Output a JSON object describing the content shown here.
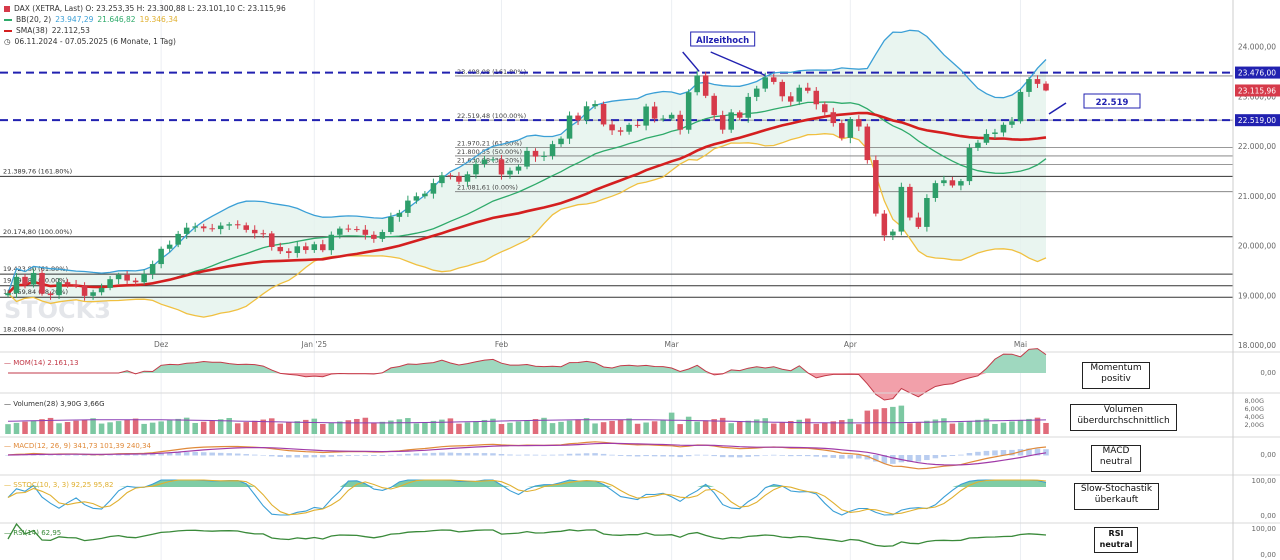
{
  "header": {
    "dax_line": "DAX (XETRA, Last)  O: 23.253,35  H: 23.300,88  L: 23.101,10  C: 23.115,96",
    "bb": {
      "label": "BB(20, 2)",
      "v1": "23.947,29",
      "v2": "21.646,82",
      "v3": "19.346,34"
    },
    "sma": {
      "label": "SMA(38)",
      "value": "22.112,53"
    },
    "range": "06.11.2024 - 07.05.2025  (6 Monate, 1 Tag)"
  },
  "colors": {
    "bb_upper": "#3a9fd6",
    "bb_mid": "#2eaa6a",
    "bb_lower": "#f0c040",
    "sma": "#d41f1f",
    "up": "#2e9e6a",
    "down": "#d63a4a",
    "dash": "#2121b0",
    "price_box": "#d63a4a"
  },
  "watermark": "STOCK3",
  "main_chart": {
    "y_ticks": [
      "24.000,00",
      "23.000,00",
      "22.000,00",
      "21.000,00",
      "20.000,00",
      "19.000,00",
      "18.000,00"
    ],
    "x_ticks": [
      "Dez",
      "Jan '25",
      "Feb",
      "Mar",
      "Apr",
      "Mai"
    ],
    "price_tags": [
      "23.476,00",
      "23.115,96",
      "22.519,00"
    ],
    "fib_labels": [
      "23.408,08 (161.80%)",
      "22.519,48 (100.00%)",
      "21.970,21 (61.80%)",
      "21.800,55 (50.00%)",
      "21.630,88 (38.20%)",
      "21.081,61 (0.00%)",
      "21.389,76 (161.80%)",
      "20.174,80 (100.00%)",
      "19.423,80 (61.80%)",
      "19.191,82 (50.00%)",
      "18.959,84 (38.20%)",
      "18.208,84 (0.00%)"
    ],
    "annotations": {
      "allzeithoch": "Allzeithoch",
      "level": "22.519"
    }
  },
  "chart_data": {
    "type": "line",
    "title": "DAX (XETRA, Last)",
    "ylim": [
      18000,
      24500
    ],
    "x": [
      "2024-11-06",
      "2024-11-07",
      "2024-11-08",
      "2024-11-11",
      "2024-11-12",
      "2024-11-13",
      "2024-11-14",
      "2024-11-15",
      "2024-11-18",
      "2024-11-19",
      "2024-11-20",
      "2024-11-21",
      "2024-11-22",
      "2024-11-25",
      "2024-11-26",
      "2024-11-27",
      "2024-11-28",
      "2024-11-29",
      "2024-12-02",
      "2024-12-03",
      "2024-12-04",
      "2024-12-05",
      "2024-12-06",
      "2024-12-09",
      "2024-12-10",
      "2024-12-11",
      "2024-12-12",
      "2024-12-13",
      "2024-12-16",
      "2024-12-17",
      "2024-12-18",
      "2024-12-19",
      "2024-12-20",
      "2024-12-23",
      "2024-12-27",
      "2024-12-30",
      "2025-01-02",
      "2025-01-03",
      "2025-01-06",
      "2025-01-07",
      "2025-01-08",
      "2025-01-09",
      "2025-01-10",
      "2025-01-13",
      "2025-01-14",
      "2025-01-15",
      "2025-01-16",
      "2025-01-17",
      "2025-01-20",
      "2025-01-21",
      "2025-01-22",
      "2025-01-23",
      "2025-01-24",
      "2025-01-27",
      "2025-01-28",
      "2025-01-29",
      "2025-01-30",
      "2025-01-31",
      "2025-02-03",
      "2025-02-04",
      "2025-02-05",
      "2025-02-06",
      "2025-02-07",
      "2025-02-10",
      "2025-02-11",
      "2025-02-12",
      "2025-02-13",
      "2025-02-14",
      "2025-02-17",
      "2025-02-18",
      "2025-02-19",
      "2025-02-20",
      "2025-02-21",
      "2025-02-24",
      "2025-02-25",
      "2025-02-26",
      "2025-02-27",
      "2025-02-28",
      "2025-03-03",
      "2025-03-04",
      "2025-03-05",
      "2025-03-06",
      "2025-03-07",
      "2025-03-10",
      "2025-03-11",
      "2025-03-12",
      "2025-03-13",
      "2025-03-14",
      "2025-03-17",
      "2025-03-18",
      "2025-03-19",
      "2025-03-20",
      "2025-03-21",
      "2025-03-24",
      "2025-03-25",
      "2025-03-26",
      "2025-03-27",
      "2025-03-28",
      "2025-03-31",
      "2025-04-01",
      "2025-04-02",
      "2025-04-03",
      "2025-04-04",
      "2025-04-07",
      "2025-04-08",
      "2025-04-09",
      "2025-04-10",
      "2025-04-11",
      "2025-04-14",
      "2025-04-15",
      "2025-04-16",
      "2025-04-17",
      "2025-04-22",
      "2025-04-23",
      "2025-04-24",
      "2025-04-25",
      "2025-04-28",
      "2025-04-29",
      "2025-04-30",
      "2025-05-02",
      "2025-05-05",
      "2025-05-06",
      "2025-05-07"
    ],
    "series": [
      {
        "name": "DAX (XETRA, Last)",
        "close": [
          19040,
          19370,
          19215,
          19448,
          19033,
          19003,
          19263,
          19211,
          19189,
          18988,
          19060,
          19147,
          19323,
          19410,
          19295,
          19262,
          19426,
          19627,
          19934,
          20017,
          20233,
          20359,
          20384,
          20346,
          20330,
          20400,
          20427,
          20406,
          20314,
          20246,
          20243,
          19970,
          19885,
          19849,
          19984,
          19909,
          20025,
          19906,
          20216,
          20340,
          20330,
          20317,
          20215,
          20133,
          20271,
          20575,
          20655,
          20903,
          20990,
          21042,
          21254,
          21411,
          21394,
          21282,
          21431,
          21637,
          21727,
          21732,
          21428,
          21505,
          21586,
          21902,
          21787,
          21800,
          22037,
          22148,
          22612,
          22514,
          22799,
          22844,
          22433,
          22315,
          22287,
          22425,
          22410,
          22794,
          22551,
          22551,
          22627,
          22327,
          23081,
          23419,
          23009,
          22621,
          22328,
          22676,
          22568,
          22987,
          23154,
          23380,
          23288,
          22999,
          22892,
          23172,
          23110,
          22839,
          22679,
          22461,
          22163,
          22540,
          22391,
          21717,
          20641,
          20202,
          20280,
          21178,
          20562,
          20374,
          20955,
          21254,
          21311,
          21206,
          21294,
          21962,
          22065,
          22242,
          22272,
          22426,
          22497,
          23087,
          23345,
          23249,
          23116
        ]
      },
      {
        "name": "BB(20, 2)",
        "upper_last": 23947.29,
        "middle_last": 21646.82,
        "lower_last": 19346.34
      },
      {
        "name": "SMA(38)",
        "last": 22112.53
      }
    ],
    "last_ohlc": {
      "open": 23253.35,
      "high": 23300.88,
      "low": 23101.1,
      "close": 23115.96
    },
    "horizontal_levels": [
      23476,
      22519,
      23408.08,
      22519.48,
      21970.21,
      21800.55,
      21630.88,
      21081.61,
      21389.76,
      20174.8,
      19423.8,
      19191.82,
      18959.84,
      18208.84
    ],
    "indicators": {
      "MOM(14)": 2161.13,
      "Volumen(28)": {
        "value": "3,90G",
        "avg": "3,66G"
      },
      "MACD(12, 26, 9)": {
        "macd": 341.73,
        "signal": 101.39,
        "hist": 240.34
      },
      "SSTOC(10, 3, 3)": {
        "k": 92.25,
        "d": 95.82
      },
      "RSI(14)": 62.95
    }
  },
  "panels": {
    "mom": {
      "label": "MOM(14)",
      "value": "2.161,13",
      "ticks": [
        "0,00"
      ],
      "box": [
        "Momentum",
        "positiv"
      ]
    },
    "vol": {
      "label": "Volumen(28)",
      "value": "3,90G",
      "value2": "3,66G",
      "ticks": [
        "8,00G",
        "6,00G",
        "4,00G",
        "2,00G"
      ],
      "box": [
        "Volumen",
        "überdurchschnittlich"
      ]
    },
    "macd": {
      "label": "MACD(12, 26, 9)",
      "value": "341,73",
      "value2": "101,39",
      "value3": "240,34",
      "ticks": [
        "0,00"
      ],
      "box": [
        "MACD",
        "neutral"
      ]
    },
    "sstoc": {
      "label": "SSTOC(10, 3, 3)",
      "value": "92,25",
      "value2": "95,82",
      "ticks": [
        "100,00",
        "0,00"
      ],
      "box": [
        "Slow-Stochastik",
        "überkauft"
      ]
    },
    "rsi": {
      "label": "RSI(14)",
      "value": "62,95",
      "ticks": [
        "100,00",
        "0,00"
      ],
      "box": [
        "RSI",
        "neutral"
      ]
    }
  }
}
